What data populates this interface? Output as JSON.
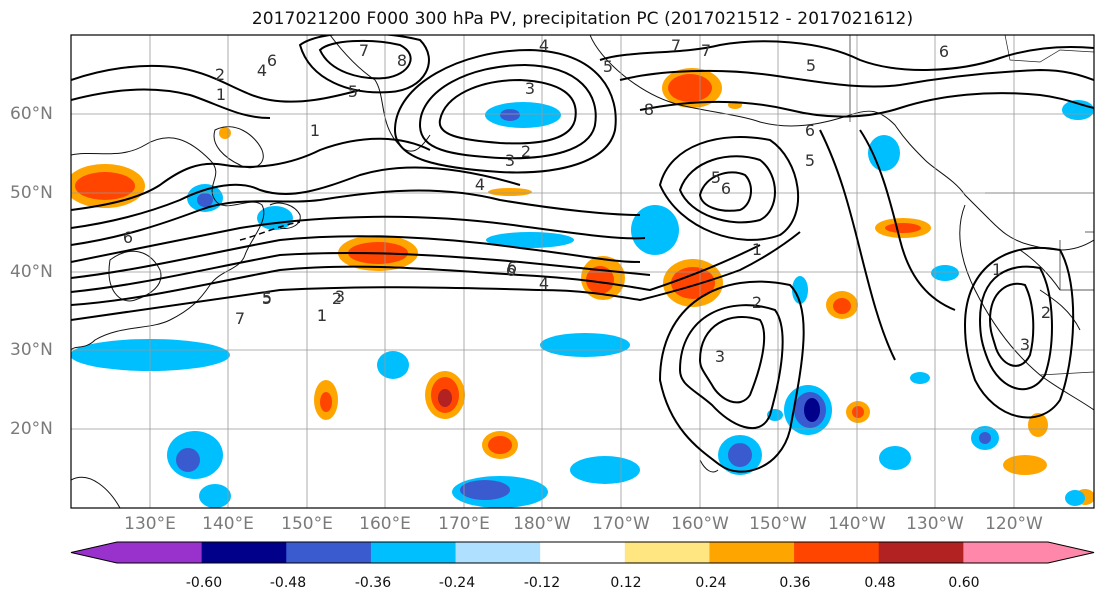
{
  "title": "2017021200 F000 300 hPa PV, precipitation PC (2017021512 - 2017021612)",
  "lat_labels": [
    "60°N",
    "50°N",
    "40°N",
    "30°N",
    "20°N"
  ],
  "lon_labels": [
    "130°E",
    "140°E",
    "150°E",
    "160°E",
    "170°E",
    "180°W",
    "170°W",
    "160°W",
    "150°W",
    "140°W",
    "130°W",
    "120°W"
  ],
  "colorbar": {
    "ticks": [
      "-0.60",
      "-0.48",
      "-0.36",
      "-0.24",
      "-0.12",
      "0.12",
      "0.24",
      "0.36",
      "0.48",
      "0.60"
    ],
    "colors": [
      "#9932cc",
      "#00008b",
      "#3a5bd0",
      "#00bfff",
      "#b0e0ff",
      "#ffffff",
      "#ffe680",
      "#ffa500",
      "#ff4500",
      "#b22222",
      "#ff88aa"
    ]
  },
  "contour_labels": [
    "7",
    "8",
    "4",
    "6",
    "2",
    "4",
    "5",
    "1",
    "1",
    "3",
    "2",
    "4",
    "6",
    "5",
    "6",
    "1",
    "2",
    "3",
    "5",
    "7",
    "4",
    "6",
    "1",
    "3",
    "5",
    "7",
    "8",
    "7",
    "5",
    "6",
    "5",
    "6",
    "5",
    "6",
    "1",
    "2",
    "3",
    "3",
    "2",
    "1"
  ]
}
